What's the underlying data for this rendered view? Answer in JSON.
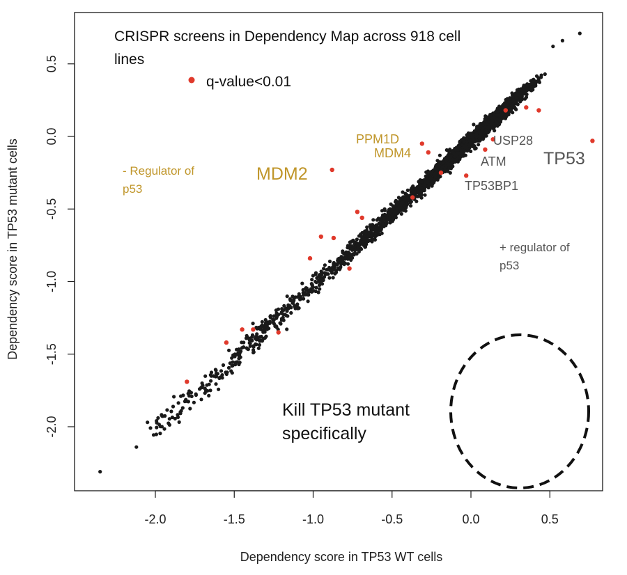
{
  "chart_data": {
    "type": "scatter",
    "title": "CRISPR screens in Dependency Map across 918 cell lines",
    "title_lines": [
      "CRISPR screens in Dependency Map across 918 cell",
      "lines"
    ],
    "xlabel": "Dependency score in TP53 WT cells",
    "ylabel": "Dependency score in TP53 mutant cells",
    "xlim": [
      -2.42,
      0.85
    ],
    "ylim": [
      -2.4,
      0.72
    ],
    "x_ticks": [
      -2.0,
      -1.5,
      -1.0,
      -0.5,
      0.0,
      0.5
    ],
    "y_ticks": [
      -2.0,
      -1.5,
      -1.0,
      -0.5,
      0.0,
      0.5
    ],
    "x_tick_labels": [
      "-2.0",
      "-1.5",
      "-1.0",
      "-0.5",
      "0.0",
      "0.5"
    ],
    "y_tick_labels": [
      "-2.0",
      "-1.5",
      "-1.0",
      "-0.5",
      "0.0",
      "0.5"
    ],
    "grid": false,
    "legend": {
      "label": "q-value<0.01",
      "color": "#e0392b",
      "placement": "top-left"
    },
    "colors": {
      "points": "#1a1a1a",
      "significant": "#e0392b",
      "negative_regulator": "#c0962a",
      "positive_regulator": "#555555"
    },
    "series": [
      {
        "name": "q-value<0.01",
        "points": [
          {
            "gene": "TP53",
            "x": 0.77,
            "y": -0.03
          },
          {
            "gene": "USP28",
            "x": 0.14,
            "y": -0.02
          },
          {
            "gene": "ATM",
            "x": 0.09,
            "y": -0.09
          },
          {
            "gene": "TP53BP1",
            "x": -0.03,
            "y": -0.27
          },
          {
            "gene": "MDM2",
            "x": -0.88,
            "y": -0.23
          },
          {
            "gene": "PPM1D",
            "x": -0.31,
            "y": -0.05
          },
          {
            "gene": "MDM4",
            "x": -0.27,
            "y": -0.11
          },
          {
            "gene": "",
            "x": -0.37,
            "y": -0.42
          },
          {
            "gene": "",
            "x": 0.22,
            "y": 0.18
          },
          {
            "gene": "",
            "x": 0.35,
            "y": 0.2
          },
          {
            "gene": "",
            "x": 0.43,
            "y": 0.18
          },
          {
            "gene": "",
            "x": -0.19,
            "y": -0.25
          },
          {
            "gene": "",
            "x": -0.72,
            "y": -0.52
          },
          {
            "gene": "",
            "x": -0.69,
            "y": -0.56
          },
          {
            "gene": "",
            "x": -0.95,
            "y": -0.69
          },
          {
            "gene": "",
            "x": -0.87,
            "y": -0.7
          },
          {
            "gene": "",
            "x": -1.02,
            "y": -0.84
          },
          {
            "gene": "",
            "x": -0.77,
            "y": -0.91
          },
          {
            "gene": "",
            "x": -1.38,
            "y": -1.33
          },
          {
            "gene": "",
            "x": -1.45,
            "y": -1.33
          },
          {
            "gene": "",
            "x": -1.55,
            "y": -1.42
          },
          {
            "gene": "",
            "x": -1.22,
            "y": -1.35
          },
          {
            "gene": "",
            "x": -1.8,
            "y": -1.69
          }
        ]
      }
    ],
    "annotations": [
      {
        "text": "TP53",
        "color": "#555555"
      },
      {
        "text": "USP28",
        "color": "#555555"
      },
      {
        "text": "ATM",
        "color": "#555555"
      },
      {
        "text": "TP53BP1",
        "color": "#555555"
      },
      {
        "text": "MDM2",
        "color": "#c0962a"
      },
      {
        "text": "PPM1D",
        "color": "#c0962a"
      },
      {
        "text": "MDM4",
        "color": "#c0962a"
      },
      {
        "text": "- Regulator of",
        "color": "#c0962a"
      },
      {
        "text": "p53",
        "color": "#c0962a"
      },
      {
        "text": "+ regulator of",
        "color": "#555555"
      },
      {
        "text": "p53",
        "color": "#555555"
      },
      {
        "text": "Kill TP53 mutant",
        "color": "#111111"
      },
      {
        "text": "specifically",
        "color": "#111111"
      }
    ]
  }
}
